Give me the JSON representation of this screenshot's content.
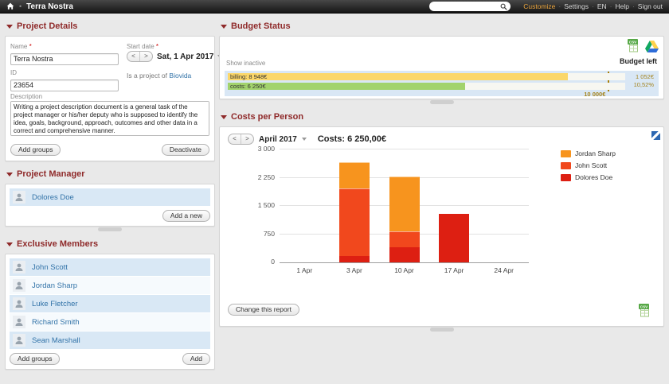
{
  "topbar": {
    "title": "Terra Nostra",
    "separator": "•",
    "link_separator": "·",
    "search": {
      "value": "",
      "placeholder": ""
    },
    "links": [
      "Customize",
      "Settings",
      "EN",
      "Help",
      "Sign out"
    ],
    "accent_color": "#E8A33D"
  },
  "pager": {
    "prev": "<",
    "next": ">"
  },
  "sections": {
    "project_details": "Project Details",
    "project_manager": "Project Manager",
    "exclusive_members": "Exclusive Members",
    "budget_status": "Budget Status",
    "costs_per_person": "Costs per Person"
  },
  "project_details": {
    "name_label": "Name",
    "required_mark": "*",
    "name_value": "Terra Nostra",
    "start_date_label": "Start date",
    "start_date_value": "Sat, 1 Apr 2017",
    "id_label": "ID",
    "id_value": "23654",
    "project_of_text": "Is a project of",
    "project_of_link": "Biovida",
    "description_label": "Description",
    "description_value": "Writing a project description document is a general task of the project manager or his/her deputy who is supposed to identify the idea, goals, background, approach, outcomes and other data in a correct and comprehensive manner.",
    "add_groups_button": "Add groups",
    "deactivate_button": "Deactivate"
  },
  "project_manager": {
    "name": "Dolores Doe",
    "add_button": "Add a new"
  },
  "exclusive_members": {
    "names": [
      "John Scott",
      "Jordan Sharp",
      "Luke Fletcher",
      "Richard Smith",
      "Sean Marshall"
    ],
    "add_groups_button": "Add groups",
    "add_button": "Add"
  },
  "budget": {
    "show_inactive_label": "Show inactive",
    "budget_left_label": "Budget left",
    "bars": [
      {
        "name": "billing",
        "label": "billing: 8 948€",
        "value": 8948,
        "color": "#FBD76A"
      },
      {
        "name": "costs",
        "label": "costs: 6 250€",
        "value": 6250,
        "color": "#A2D36C"
      }
    ],
    "budget_line": {
      "value": 10000,
      "label": "10 000€"
    },
    "track_value": 10460,
    "remaining_value": "1 052€",
    "remaining_percent": "10,52%",
    "accent_color": "#A5841E",
    "box_color": "#D9E7F5"
  },
  "costs_panel": {
    "month_label": "April 2017",
    "costs_label": "Costs: 6 250,00€",
    "change_report_button": "Change this report"
  },
  "chart_data": {
    "type": "bar",
    "stacked": true,
    "title": "Costs: 6 250,00€",
    "categories": [
      "1 Apr",
      "3 Apr",
      "10 Apr",
      "17 Apr",
      "24 Apr"
    ],
    "series": [
      {
        "name": "Jordan Sharp",
        "color": "#F7941E",
        "values": [
          0,
          710,
          1460,
          0,
          0
        ]
      },
      {
        "name": "John Scott",
        "color": "#F1481D",
        "values": [
          0,
          1790,
          430,
          0,
          0
        ]
      },
      {
        "name": "Dolores Doe",
        "color": "#DD1F12",
        "values": [
          0,
          170,
          400,
          1290,
          0
        ]
      }
    ],
    "stack_order_bottom_to_top": [
      "Dolores Doe",
      "John Scott",
      "Jordan Sharp"
    ],
    "ylim": [
      0,
      3000
    ],
    "yticks": [
      0,
      750,
      1500,
      2250,
      3000
    ],
    "ytick_labels": [
      "0",
      "750",
      "1 500",
      "2 250",
      "3 000"
    ],
    "grid": true,
    "legend_position": "right"
  },
  "colors": {
    "section_header": "#8F2A2A",
    "link_blue": "#3273A8",
    "member_row_blue": "#D9E8F5"
  }
}
